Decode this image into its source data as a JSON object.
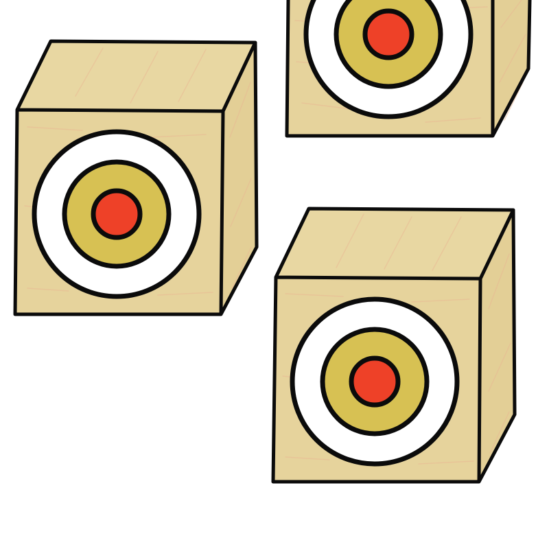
{
  "scene": {
    "description_label": "",
    "background": "#ffffff"
  },
  "colors": {
    "outline": "#0b0b0b",
    "wood_face": "#e6d39c",
    "wood_top": "#e8d7a2",
    "wood_side": "#e3cf96",
    "wood_grain": "#e9b893",
    "ring_outer": "#ffffff",
    "ring_middle": "#d7c153",
    "bullseye": "#ee4128"
  },
  "targets": [
    {
      "id": "target-box-1",
      "icon": "target-icon",
      "rings": [
        "ring_outer",
        "ring_middle",
        "bullseye"
      ]
    },
    {
      "id": "target-box-2",
      "icon": "target-icon",
      "rings": [
        "ring_outer",
        "ring_middle",
        "bullseye"
      ]
    },
    {
      "id": "target-box-3",
      "icon": "target-icon",
      "rings": [
        "ring_outer",
        "ring_middle",
        "bullseye"
      ]
    }
  ]
}
